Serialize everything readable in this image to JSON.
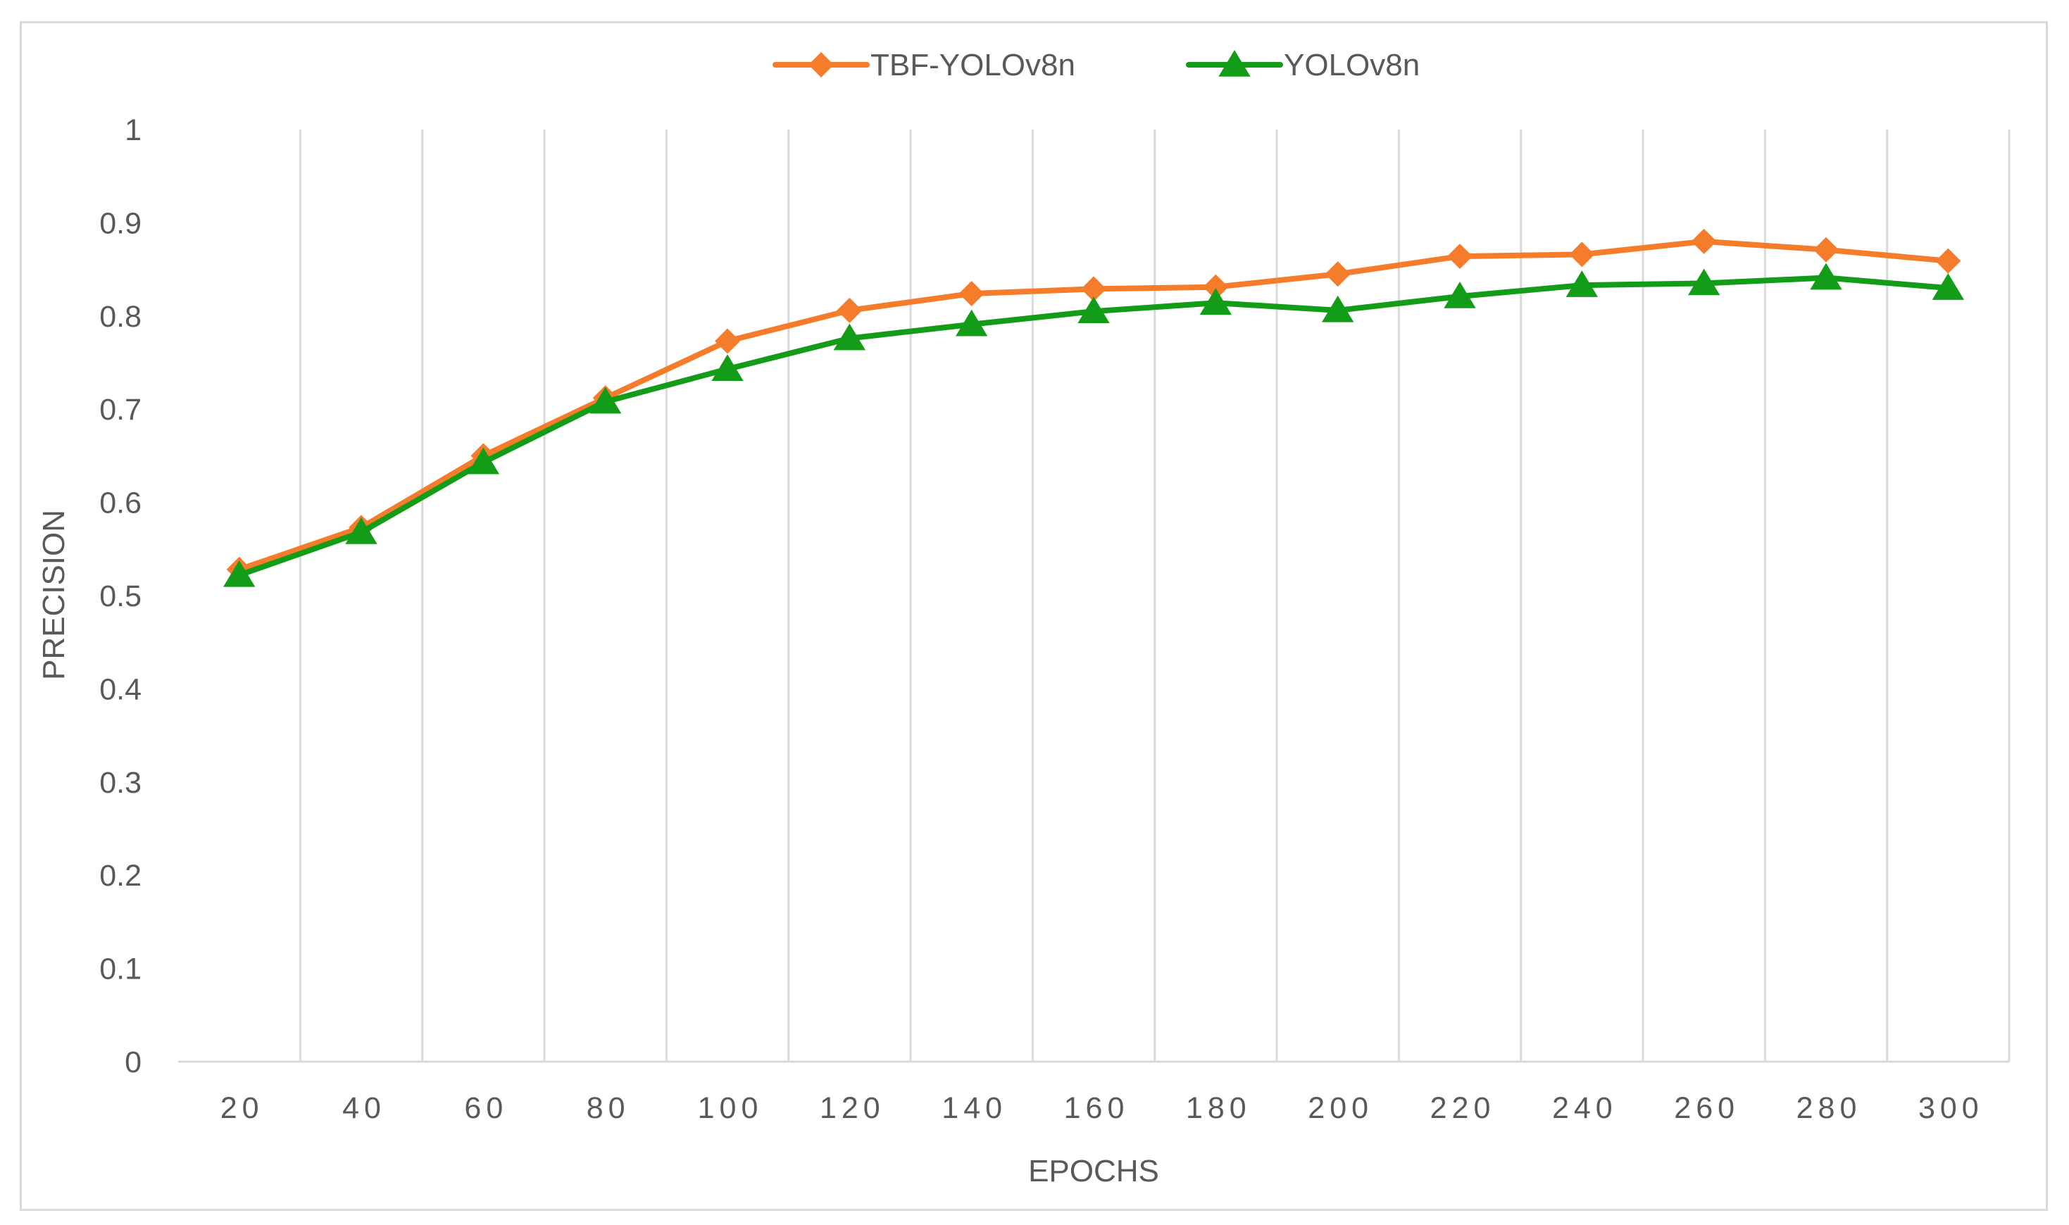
{
  "chart_data": {
    "type": "line",
    "title": "",
    "xlabel": "EPOCHS",
    "ylabel": "PRECISION",
    "categories": [
      "20",
      "40",
      "60",
      "80",
      "100",
      "120",
      "140",
      "160",
      "180",
      "200",
      "220",
      "240",
      "260",
      "280",
      "300"
    ],
    "ylim": [
      0,
      1
    ],
    "yticks": [
      "0",
      "0.1",
      "0.2",
      "0.3",
      "0.4",
      "0.5",
      "0.6",
      "0.7",
      "0.8",
      "0.9",
      "1"
    ],
    "grid": "vertical",
    "legend_position": "top",
    "series": [
      {
        "name": "TBF-YOLOv8n",
        "color": "#f57c2b",
        "marker": "diamond",
        "values": [
          0.528,
          0.573,
          0.65,
          0.712,
          0.773,
          0.806,
          0.824,
          0.829,
          0.831,
          0.845,
          0.864,
          0.866,
          0.88,
          0.871,
          0.859
        ]
      },
      {
        "name": "YOLOv8n",
        "color": "#139c17",
        "marker": "triangle",
        "values": [
          0.522,
          0.568,
          0.643,
          0.708,
          0.743,
          0.776,
          0.791,
          0.805,
          0.814,
          0.806,
          0.821,
          0.833,
          0.835,
          0.841,
          0.83
        ]
      }
    ]
  }
}
